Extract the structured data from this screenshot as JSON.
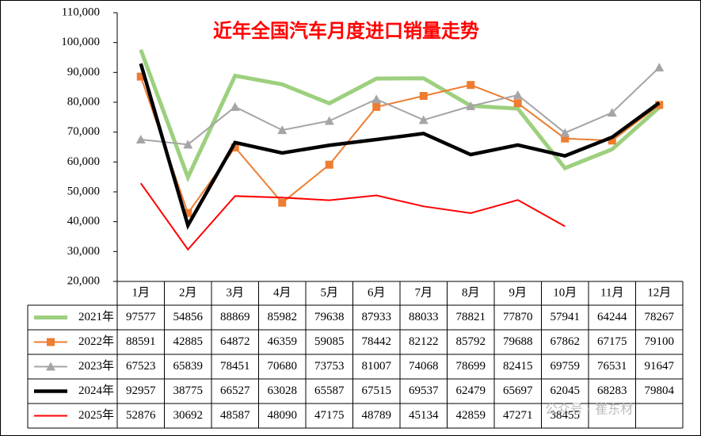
{
  "chart_data": {
    "type": "line",
    "title": "近年全国汽车月度进口销量走势",
    "watermark": "公众号 · 崔东材",
    "categories": [
      "1月",
      "2月",
      "3月",
      "4月",
      "5月",
      "6月",
      "7月",
      "8月",
      "9月",
      "10月",
      "11月",
      "12月"
    ],
    "ylim": [
      20000,
      110000
    ],
    "yticks": [
      {
        "value": 20000,
        "label": "20,000"
      },
      {
        "value": 30000,
        "label": "30,000"
      },
      {
        "value": 40000,
        "label": "40,000"
      },
      {
        "value": 50000,
        "label": "50,000"
      },
      {
        "value": 60000,
        "label": "60,000"
      },
      {
        "value": 70000,
        "label": "70,000"
      },
      {
        "value": 80000,
        "label": "80,000"
      },
      {
        "value": 90000,
        "label": "90,000"
      },
      {
        "value": 100000,
        "label": "100,000"
      },
      {
        "value": 110000,
        "label": "110,000"
      }
    ],
    "series": [
      {
        "name": "2021年",
        "color": "#9dd07e",
        "line_width": 5,
        "marker": null,
        "values": [
          97577,
          54856,
          88869,
          85982,
          79638,
          87933,
          88033,
          78821,
          77870,
          57941,
          64244,
          78267
        ]
      },
      {
        "name": "2022年",
        "color": "#ed7d31",
        "line_width": 2,
        "marker": "square",
        "values": [
          88591,
          42885,
          64872,
          46359,
          59085,
          78442,
          82122,
          85792,
          79688,
          67862,
          67175,
          79100
        ]
      },
      {
        "name": "2023年",
        "color": "#a5a5a5",
        "line_width": 2,
        "marker": "triangle",
        "values": [
          67523,
          65839,
          78451,
          70680,
          73753,
          81007,
          74068,
          78699,
          82415,
          69759,
          76531,
          91647
        ]
      },
      {
        "name": "2024年",
        "color": "#000000",
        "line_width": 4.5,
        "marker": null,
        "values": [
          92957,
          38775,
          66527,
          63028,
          65587,
          67515,
          69537,
          62479,
          65697,
          62045,
          68283,
          79804
        ]
      },
      {
        "name": "2025年",
        "color": "#ff0000",
        "line_width": 2,
        "marker": null,
        "values": [
          52876,
          30692,
          48587,
          48090,
          47175,
          48789,
          45134,
          42859,
          47271,
          38455,
          null,
          null
        ]
      }
    ]
  }
}
